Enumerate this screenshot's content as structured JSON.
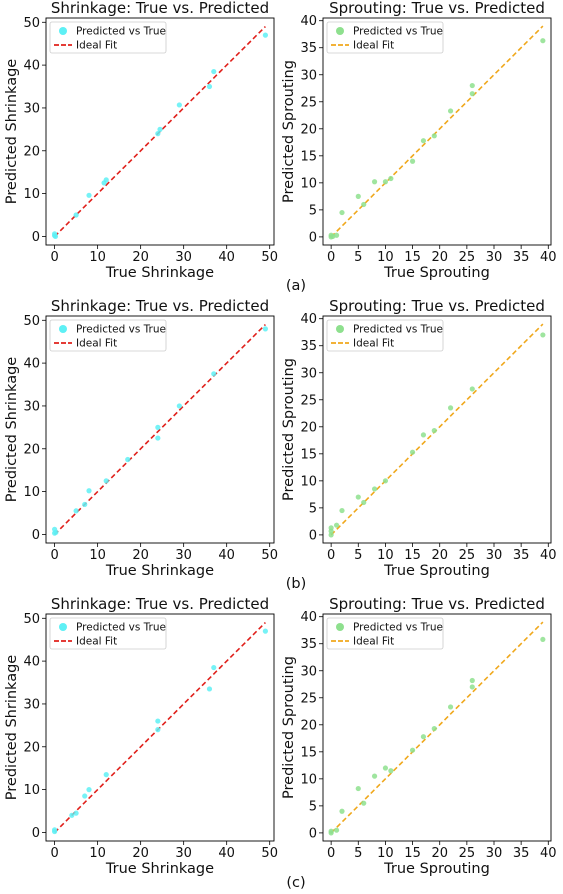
{
  "captions": [
    "(a)",
    "(b)",
    "(c)"
  ],
  "colors": {
    "shrinkage_points": "#5ef0f5",
    "shrinkage_line": "#e0201b",
    "sprouting_points": "#8ee08e",
    "sprouting_line": "#f0a81c"
  },
  "chart_data": [
    {
      "type": "scatter",
      "panel": "a",
      "variable": "shrinkage",
      "title": "Shrinkage: True vs. Predicted",
      "xlabel": "True Shrinkage",
      "ylabel": "Predicted Shrinkage",
      "xlim": [
        -2,
        51
      ],
      "ylim": [
        -2,
        51
      ],
      "xticks": [
        0,
        10,
        20,
        30,
        40,
        50
      ],
      "yticks": [
        0,
        10,
        20,
        30,
        40,
        50
      ],
      "legend": [
        "Predicted vs True",
        "Ideal Fit"
      ],
      "legend_position": "top-left",
      "ideal_line": [
        [
          0,
          0
        ],
        [
          49,
          49
        ]
      ],
      "series": [
        {
          "name": "Predicted vs True",
          "points": [
            [
              0,
              0.2
            ],
            [
              0,
              0.6
            ],
            [
              0.2,
              0
            ],
            [
              5,
              5
            ],
            [
              8,
              9.6
            ],
            [
              11.5,
              12.5
            ],
            [
              12,
              13.2
            ],
            [
              24,
              24
            ],
            [
              24.5,
              25
            ],
            [
              29,
              30.7
            ],
            [
              36,
              35
            ],
            [
              37,
              38.5
            ],
            [
              49,
              47
            ]
          ]
        }
      ]
    },
    {
      "type": "scatter",
      "panel": "a",
      "variable": "sprouting",
      "title": "Sprouting: True vs. Predicted",
      "xlabel": "True Sprouting",
      "ylabel": "Predicted Sprouting",
      "xlim": [
        -1.5,
        40.5
      ],
      "ylim": [
        -1.5,
        40.5
      ],
      "xticks": [
        0,
        5,
        10,
        15,
        20,
        25,
        30,
        35,
        40
      ],
      "yticks": [
        0,
        5,
        10,
        15,
        20,
        25,
        30,
        35,
        40
      ],
      "legend": [
        "Predicted vs True",
        "Ideal Fit"
      ],
      "legend_position": "top-left",
      "ideal_line": [
        [
          0,
          0
        ],
        [
          39,
          39
        ]
      ],
      "series": [
        {
          "name": "Predicted vs True",
          "points": [
            [
              0,
              0
            ],
            [
              0,
              0.3
            ],
            [
              0.3,
              0.1
            ],
            [
              1,
              0.3
            ],
            [
              2,
              4.5
            ],
            [
              5,
              7.5
            ],
            [
              6,
              6
            ],
            [
              8,
              10.2
            ],
            [
              10,
              10.2
            ],
            [
              11,
              10.8
            ],
            [
              15,
              14
            ],
            [
              17,
              17.8
            ],
            [
              19,
              18.7
            ],
            [
              22,
              23.3
            ],
            [
              26,
              26.5
            ],
            [
              26,
              28
            ],
            [
              39,
              36.3
            ]
          ]
        }
      ]
    },
    {
      "type": "scatter",
      "panel": "b",
      "variable": "shrinkage",
      "title": "Shrinkage: True vs. Predicted",
      "xlabel": "True Shrinkage",
      "ylabel": "Predicted Shrinkage",
      "xlim": [
        -2,
        51
      ],
      "ylim": [
        -2,
        51
      ],
      "xticks": [
        0,
        10,
        20,
        30,
        40,
        50
      ],
      "yticks": [
        0,
        10,
        20,
        30,
        40,
        50
      ],
      "legend": [
        "Predicted vs True",
        "Ideal Fit"
      ],
      "legend_position": "top-left",
      "ideal_line": [
        [
          0,
          0
        ],
        [
          49,
          49
        ]
      ],
      "series": [
        {
          "name": "Predicted vs True",
          "points": [
            [
              0,
              0.3
            ],
            [
              0,
              1.2
            ],
            [
              0.3,
              0.5
            ],
            [
              5,
              5.5
            ],
            [
              7,
              7
            ],
            [
              8,
              10.2
            ],
            [
              12,
              12.5
            ],
            [
              17,
              17.5
            ],
            [
              24,
              22.5
            ],
            [
              24,
              25
            ],
            [
              29,
              30
            ],
            [
              37,
              37.5
            ],
            [
              49,
              48
            ]
          ]
        }
      ]
    },
    {
      "type": "scatter",
      "panel": "b",
      "variable": "sprouting",
      "title": "Sprouting: True vs. Predicted",
      "xlabel": "True Sprouting",
      "ylabel": "Predicted Sprouting",
      "xlim": [
        -1.5,
        40.5
      ],
      "ylim": [
        -1.5,
        40.5
      ],
      "xticks": [
        0,
        5,
        10,
        15,
        20,
        25,
        30,
        35,
        40
      ],
      "yticks": [
        0,
        5,
        10,
        15,
        20,
        25,
        30,
        35,
        40
      ],
      "legend": [
        "Predicted vs True",
        "Ideal Fit"
      ],
      "legend_position": "top-left",
      "ideal_line": [
        [
          0,
          0
        ],
        [
          39,
          39
        ]
      ],
      "series": [
        {
          "name": "Predicted vs True",
          "points": [
            [
              0,
              0
            ],
            [
              0,
              0.7
            ],
            [
              0,
              1.3
            ],
            [
              1,
              1.8
            ],
            [
              2,
              4.5
            ],
            [
              5,
              7
            ],
            [
              6,
              6
            ],
            [
              8,
              8.5
            ],
            [
              10,
              10
            ],
            [
              15,
              15.3
            ],
            [
              17,
              18.5
            ],
            [
              19,
              19.3
            ],
            [
              22,
              23.5
            ],
            [
              26,
              27
            ],
            [
              39,
              37
            ]
          ]
        }
      ]
    },
    {
      "type": "scatter",
      "panel": "c",
      "variable": "shrinkage",
      "title": "Shrinkage: True vs. Predicted",
      "xlabel": "True Shrinkage",
      "ylabel": "Predicted Shrinkage",
      "xlim": [
        -2,
        51
      ],
      "ylim": [
        -2,
        51
      ],
      "xticks": [
        0,
        10,
        20,
        30,
        40,
        50
      ],
      "yticks": [
        0,
        10,
        20,
        30,
        40,
        50
      ],
      "legend": [
        "Predicted vs True",
        "Ideal Fit"
      ],
      "legend_position": "top-left",
      "ideal_line": [
        [
          0,
          0
        ],
        [
          49,
          49
        ]
      ],
      "series": [
        {
          "name": "Predicted vs True",
          "points": [
            [
              0,
              0.2
            ],
            [
              0,
              0.6
            ],
            [
              4,
              4
            ],
            [
              5,
              4.5
            ],
            [
              7,
              8.5
            ],
            [
              8,
              10
            ],
            [
              12,
              13.5
            ],
            [
              24,
              24
            ],
            [
              24,
              26
            ],
            [
              36,
              33.5
            ],
            [
              37,
              38.5
            ],
            [
              49,
              47
            ]
          ]
        }
      ]
    },
    {
      "type": "scatter",
      "panel": "c",
      "variable": "sprouting",
      "title": "Sprouting: True vs. Predicted",
      "xlabel": "True Sprouting",
      "ylabel": "Predicted Sprouting",
      "xlim": [
        -1.5,
        40.5
      ],
      "ylim": [
        -1.5,
        40.5
      ],
      "xticks": [
        0,
        5,
        10,
        15,
        20,
        25,
        30,
        35,
        40
      ],
      "yticks": [
        0,
        5,
        10,
        15,
        20,
        25,
        30,
        35,
        40
      ],
      "legend": [
        "Predicted vs True",
        "Ideal Fit"
      ],
      "legend_position": "top-left",
      "ideal_line": [
        [
          0,
          0
        ],
        [
          39,
          39
        ]
      ],
      "series": [
        {
          "name": "Predicted vs True",
          "points": [
            [
              0,
              0
            ],
            [
              0,
              0.3
            ],
            [
              1,
              0.5
            ],
            [
              2,
              4
            ],
            [
              5,
              8.2
            ],
            [
              6,
              5.5
            ],
            [
              8,
              10.5
            ],
            [
              10,
              12
            ],
            [
              11,
              11.5
            ],
            [
              15,
              15.3
            ],
            [
              17,
              17.8
            ],
            [
              19,
              19.3
            ],
            [
              22,
              23.3
            ],
            [
              26,
              27
            ],
            [
              26,
              28.2
            ],
            [
              39,
              35.8
            ]
          ]
        }
      ]
    }
  ]
}
